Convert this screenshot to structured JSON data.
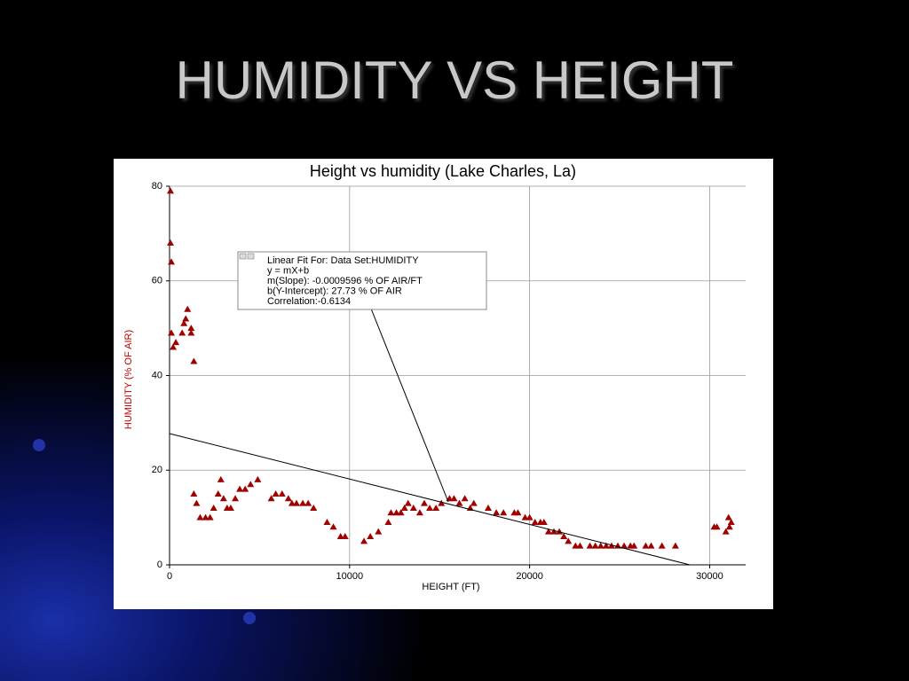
{
  "slide_title": "HUMIDITY VS HEIGHT",
  "chart_data": {
    "type": "scatter",
    "title": "Height vs humidity (Lake Charles, La)",
    "x_label": "HEIGHT (FT)",
    "y_label": "HUMIDITY (% OF AIR)",
    "color": "#a00000",
    "grid": true,
    "xlim": [
      0,
      32000
    ],
    "ylim": [
      0,
      80
    ],
    "xticks": [
      0,
      10000,
      20000,
      30000
    ],
    "yticks": [
      0,
      20,
      40,
      60,
      80
    ],
    "x": [
      50,
      50,
      100,
      100,
      200,
      350,
      700,
      800,
      900,
      1000,
      1200,
      1200,
      1350,
      1350,
      1500,
      1700,
      2000,
      2250,
      2450,
      2700,
      2850,
      3000,
      3200,
      3400,
      3650,
      3900,
      4200,
      4500,
      4900,
      5650,
      5900,
      6250,
      6600,
      6800,
      7050,
      7400,
      7700,
      8000,
      8750,
      9100,
      9500,
      9750,
      10800,
      11150,
      11600,
      12150,
      12300,
      12600,
      12850,
      13050,
      13250,
      13550,
      13900,
      14150,
      14450,
      14800,
      15100,
      15550,
      15800,
      16100,
      16400,
      16700,
      16900,
      17700,
      18150,
      18550,
      19150,
      19350,
      19750,
      20000,
      20300,
      20600,
      20800,
      21050,
      21350,
      21650,
      21900,
      22150,
      22550,
      22800,
      23350,
      23650,
      23950,
      24250,
      24550,
      24900,
      25250,
      25600,
      25800,
      26450,
      26750,
      27350,
      28100,
      30250,
      30400,
      30900,
      31100,
      31200,
      31050
    ],
    "values": [
      79,
      68,
      64,
      49,
      46,
      47,
      49,
      51,
      52,
      54,
      50,
      49,
      43,
      15,
      13,
      10,
      10,
      10,
      12,
      15,
      18,
      14,
      12,
      12,
      14,
      16,
      16,
      17,
      18,
      14,
      15,
      15,
      14,
      13,
      13,
      13,
      13,
      12,
      9,
      8,
      6,
      6,
      5,
      6,
      7,
      9,
      11,
      11,
      11,
      12,
      13,
      12,
      11,
      13,
      12,
      12,
      13,
      14,
      14,
      13,
      14,
      12,
      13,
      12,
      11,
      11,
      11,
      11,
      10,
      10,
      9,
      9,
      9,
      7,
      7,
      7,
      6,
      5,
      4,
      4,
      4,
      4,
      4,
      4,
      4,
      4,
      4,
      4,
      4,
      4,
      4,
      4,
      4,
      8,
      8,
      7,
      8,
      9,
      10
    ],
    "fit": {
      "slope": -0.0009596,
      "intercept": 27.73
    },
    "annotation": [
      "Linear Fit For:   Data Set:HUMIDITY",
      "y = mX+b",
      "m(Slope): -0.0009596 % OF AIR/FT",
      "b(Y-Intercept): 27.73 % OF AIR",
      "Correlation:-0.6134"
    ]
  }
}
